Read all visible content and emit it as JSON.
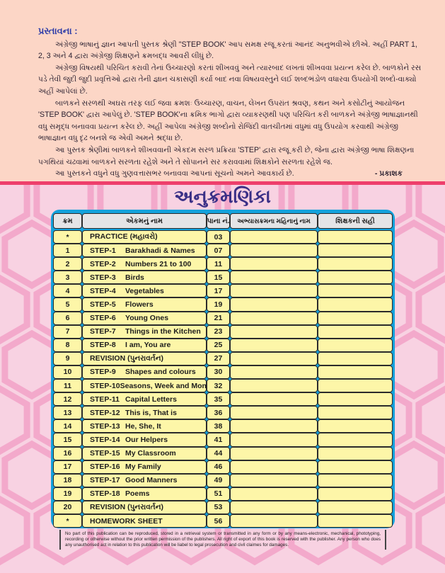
{
  "preface": {
    "heading": "પ્રસ્તાવના :",
    "paragraphs": [
      "અંગ્રેજી ભાષાનું જ્ઞાન આપતી પુસ્તક શ્રેણી \"STEP BOOK' આપ સમક્ષ રજૂ કરતાં આનંદ અનુભવીએ છીએ. અહીં PART 1, 2, 3 અને 4 દ્વારા અંગ્રેજી શિક્ષણને ક્રમબદ્ધ આવરી લીધું છે.",
      "અંગ્રેજી વિષયથી પરિચિત કરાવી તેનાં ઉચ્ચારણો કરતાં શીખવવું અને ત્યારબાદ લખતાં શીખવવા પ્રયત્ન કરેલ છે. બાળકોને રસ પડે તેવી જુદી જુદી પ્રવૃત્તિઓ દ્વારા તેની જ્ઞાન ચકાસણી કર્યા બાદ નવા વિષયવસ્તુને લઈ શબ્દભંડોળ વધારવા ઉપયોગી શબ્દો-વાક્યો અહીં આપેલાં છે.",
      "બાળકને સરળથી અઘરા તરફ લઈ જવા ક્રમશઃ ઉચ્ચારણ, વાચન, લેખન ઉપરાંત શ્રવણ, કથન અને કસોટીનું આયોજન 'STEP BOOK' દ્વારા આપેલું છે. 'STEP BOOK'ના ક્રમિક ભાગો દ્વારા વ્યાકરણથી પણ પરિચિત કરી બાળકને અંગ્રેજી ભાષાજ્ઞાનથી વધુ સમૃદ્ધ બનાવવા પ્રયત્ન કરેલ છે. અહીં આપેલા અંગ્રેજી શબ્દોનો રોજિંદી વાતચીતમાં વધુમાં વધુ ઉપયોગ કરવાથી અંગ્રેજી ભાષાજ્ઞાન વધુ દૃઢ બનશે જ એવી અમને શ્રદ્ધા છે.",
      "આ પુસ્તક શ્રેણીમાં બાળકને શીખવવાની એકદમ સરળ પ્રક્રિયા 'STEP' દ્વારા રજૂ કરી છે, જેના દ્વારા અંગ્રેજી ભાષા શિક્ષણના પગથિયાં ચઢવામાં બાળકને સરળતા રહેશે અને તે સોપાનને સર કરાવવામાં શિક્ષકોને સરળતા રહેશે જ.",
      "આ પુસ્તકને વધુને વધુ ગુણવત્તાસભર બનાવવા આપનાં સૂચનો અમને આવકાર્ય છે."
    ],
    "signature": "- પ્રકાશક"
  },
  "index": {
    "title": "અનુક્રમણિકા",
    "headers": [
      "ક્રમ",
      "એકમનું નામ",
      "પાના નં.",
      "અભ્યાસક્રમના મહિનાનું નામ",
      "શિક્ષકની સહી"
    ],
    "rows": [
      {
        "no": "*",
        "step": "",
        "name": "PRACTICE (મહાવરો)",
        "page": "03"
      },
      {
        "no": "1",
        "step": "STEP-1",
        "name": "Barakhadi & Names",
        "page": "07"
      },
      {
        "no": "2",
        "step": "STEP-2",
        "name": "Numbers 21 to 100",
        "page": "11"
      },
      {
        "no": "3",
        "step": "STEP-3",
        "name": "Birds",
        "page": "15"
      },
      {
        "no": "4",
        "step": "STEP-4",
        "name": "Vegetables",
        "page": "17"
      },
      {
        "no": "5",
        "step": "STEP-5",
        "name": "Flowers",
        "page": "19"
      },
      {
        "no": "6",
        "step": "STEP-6",
        "name": "Young Ones",
        "page": "21"
      },
      {
        "no": "7",
        "step": "STEP-7",
        "name": "Things in the Kitchen",
        "page": "23"
      },
      {
        "no": "8",
        "step": "STEP-8",
        "name": "I am, You are",
        "page": "25"
      },
      {
        "no": "9",
        "step": "",
        "name": "REVISION (પુનરાવર્તન)",
        "page": "27"
      },
      {
        "no": "10",
        "step": "STEP-9",
        "name": "Shapes and colours",
        "page": "30"
      },
      {
        "no": "11",
        "step": "STEP-10",
        "name": "Seasons, Week and Months",
        "page": "32"
      },
      {
        "no": "12",
        "step": "STEP-11",
        "name": "Capital Letters",
        "page": "35"
      },
      {
        "no": "13",
        "step": "STEP-12",
        "name": "This is, That is",
        "page": "36"
      },
      {
        "no": "14",
        "step": "STEP-13",
        "name": "He, She, It",
        "page": "38"
      },
      {
        "no": "15",
        "step": "STEP-14",
        "name": "Our Helpers",
        "page": "41"
      },
      {
        "no": "16",
        "step": "STEP-15",
        "name": "My Classroom",
        "page": "44"
      },
      {
        "no": "17",
        "step": "STEP-16",
        "name": "My Family",
        "page": "46"
      },
      {
        "no": "18",
        "step": "STEP-17",
        "name": "Good Manners",
        "page": "49"
      },
      {
        "no": "19",
        "step": "STEP-18",
        "name": "Poems",
        "page": "51"
      },
      {
        "no": "20",
        "step": "",
        "name": "REVISION (પુનરાવર્તન)",
        "page": "53"
      },
      {
        "no": "*",
        "step": "",
        "name": "HOMEWORK SHEET",
        "page": "56"
      }
    ]
  },
  "notice": "No part of this publication can be reproduced, stored in a retrieval system or transmitted in any form or by any means-electronic, mechanical, phototyping, recording or otherwise without the prior written permission of the publishers. All right of export of this book is reserved with the publisher. Any person who does any unauthorised act in relation to this publication will be liabel to legal prosecution and civil claimes for damages.",
  "colors": {
    "preface_bg": "#fcd6c6",
    "page_bg": "#f8d2e2",
    "band": "#ee3f6c",
    "table_frame": "#14a2dc",
    "cell": "#fdf6a8",
    "title": "#3a2f86"
  }
}
